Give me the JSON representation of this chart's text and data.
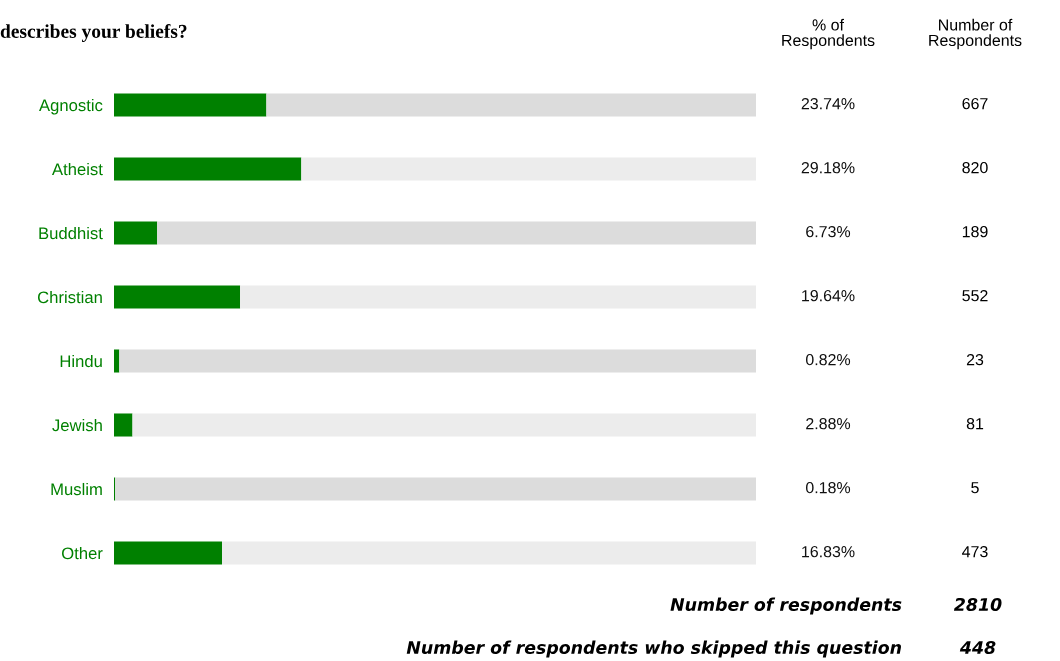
{
  "chart_data": {
    "type": "bar",
    "orientation": "horizontal",
    "stacked": true,
    "title": "describes your beliefs?",
    "categories": [
      "Agnostic",
      "Atheist",
      "Buddhist",
      "Christian",
      "Hindu",
      "Jewish",
      "Muslim",
      "Other"
    ],
    "series": [
      {
        "color": "#008000",
        "values": [
          23.74,
          29.18,
          6.73,
          19.64,
          0.82,
          2.88,
          0.18,
          16.83
        ],
        "value_labels": [
          "23.74%",
          "29.18%",
          "6.73%",
          "19.64%",
          "0.82%",
          "2.88%",
          "0.18%",
          "16.83%"
        ]
      },
      {
        "colors": [
          "#dcdcdc",
          "#ececec",
          "#dcdcdc",
          "#ececec",
          "#dcdcdc",
          "#ececec",
          "#dcdcdc",
          "#ececec"
        ],
        "values": [
          76.26,
          70.82,
          93.27,
          80.36,
          99.18,
          97.12,
          99.82,
          83.17
        ]
      }
    ],
    "xlim": [
      0,
      100
    ],
    "tick_labels": "y",
    "annotations": [
      "% of\nRespondents",
      "Number of\nRespondents",
      "667",
      "820",
      "189",
      "552",
      "23",
      "81",
      "5",
      "473",
      "Number of respondents",
      "2810",
      "Number of respondents who skipped this question",
      "448"
    ]
  }
}
